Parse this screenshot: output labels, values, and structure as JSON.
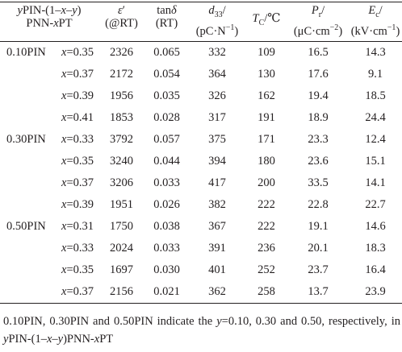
{
  "table": {
    "header": {
      "composition": [
        "yPIN-(1–x–y)",
        "PNN-xPT"
      ],
      "permittivity": [
        "ε′",
        "(@RT)"
      ],
      "loss": [
        "tanδ",
        "(RT)"
      ],
      "d33": [
        "d33/",
        "(pC·N−1)"
      ],
      "tc": "TC/℃",
      "pr": [
        "Pr/",
        "(μC·cm−2)"
      ],
      "ec": [
        "Ec/",
        "(kV·cm−1)"
      ]
    },
    "rows": [
      {
        "group": "0.10PIN",
        "x": "x=0.35",
        "eps": "2326",
        "tan": "0.065",
        "d33": "332",
        "tc": "109",
        "pr": "16.5",
        "ec": "14.3"
      },
      {
        "group": "",
        "x": "x=0.37",
        "eps": "2172",
        "tan": "0.054",
        "d33": "364",
        "tc": "130",
        "pr": "17.6",
        "ec": "9.1"
      },
      {
        "group": "",
        "x": "x=0.39",
        "eps": "1956",
        "tan": "0.035",
        "d33": "326",
        "tc": "162",
        "pr": "19.4",
        "ec": "18.5"
      },
      {
        "group": "",
        "x": "x=0.41",
        "eps": "1853",
        "tan": "0.028",
        "d33": "317",
        "tc": "191",
        "pr": "18.9",
        "ec": "24.4"
      },
      {
        "group": "0.30PIN",
        "x": "x=0.33",
        "eps": "3792",
        "tan": "0.057",
        "d33": "375",
        "tc": "171",
        "pr": "23.3",
        "ec": "12.4"
      },
      {
        "group": "",
        "x": "x=0.35",
        "eps": "3240",
        "tan": "0.044",
        "d33": "394",
        "tc": "180",
        "pr": "23.6",
        "ec": "15.1"
      },
      {
        "group": "",
        "x": "x=0.37",
        "eps": "3206",
        "tan": "0.033",
        "d33": "417",
        "tc": "200",
        "pr": "33.5",
        "ec": "14.1"
      },
      {
        "group": "",
        "x": "x=0.39",
        "eps": "1951",
        "tan": "0.026",
        "d33": "382",
        "tc": "222",
        "pr": "22.8",
        "ec": "22.7"
      },
      {
        "group": "0.50PIN",
        "x": "x=0.31",
        "eps": "1750",
        "tan": "0.038",
        "d33": "367",
        "tc": "222",
        "pr": "19.1",
        "ec": "14.6"
      },
      {
        "group": "",
        "x": "x=0.33",
        "eps": "2024",
        "tan": "0.033",
        "d33": "391",
        "tc": "236",
        "pr": "20.1",
        "ec": "18.3"
      },
      {
        "group": "",
        "x": "x=0.35",
        "eps": "1697",
        "tan": "0.030",
        "d33": "401",
        "tc": "252",
        "pr": "23.7",
        "ec": "16.4"
      },
      {
        "group": "",
        "x": "x=0.37",
        "eps": "2156",
        "tan": "0.021",
        "d33": "362",
        "tc": "258",
        "pr": "13.7",
        "ec": "23.9"
      }
    ]
  },
  "footnote": "0.10PIN, 0.30PIN and 0.50PIN indicate the y=0.10, 0.30 and 0.50, respectively, in yPIN-(1–x–y)PNN-xPT"
}
